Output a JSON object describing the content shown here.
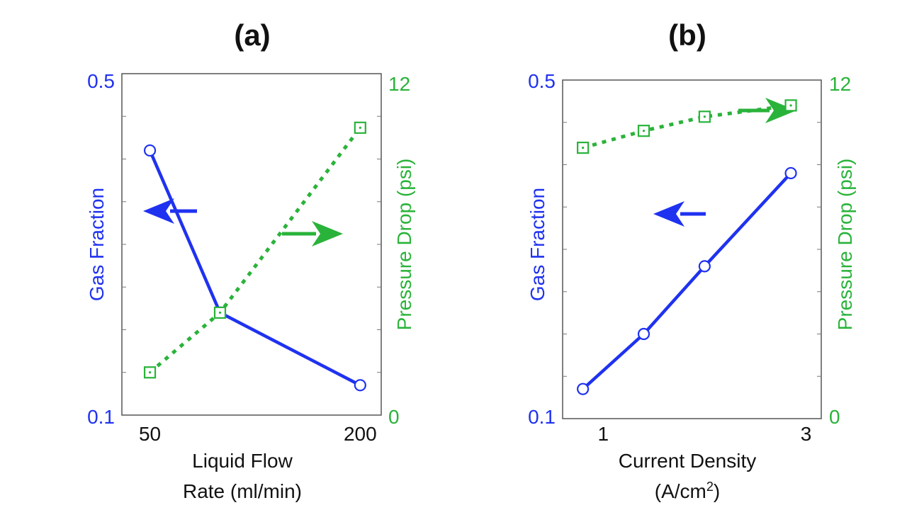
{
  "colors": {
    "left_axis": "#1f32f0",
    "right_axis": "#2ab33a",
    "frame": "#555555",
    "text": "#111111"
  },
  "chart_data": [
    {
      "id": "a",
      "type": "line",
      "title": "(a)",
      "xlabel_lines": [
        "Liquid Flow",
        "Rate (ml/min)"
      ],
      "ylabel_left": "Gas Fraction",
      "ylabel_right": "Pressure Drop (psi)",
      "xlim": [
        30,
        215
      ],
      "x_ticks": [
        50,
        200
      ],
      "x_tick_labels": [
        "50",
        "200"
      ],
      "ylim_left": [
        0.1,
        0.5
      ],
      "y_left_tick_labels": [
        "0.1",
        "0.5"
      ],
      "ylim_right": [
        0,
        12
      ],
      "y_right_tick_labels": [
        "0",
        "12"
      ],
      "grid": false,
      "series": [
        {
          "axis": "left",
          "marker": "circle",
          "line_style": "solid",
          "color": "#1f32f0",
          "x": [
            50,
            100,
            200
          ],
          "y": [
            0.41,
            0.22,
            0.135
          ]
        },
        {
          "axis": "right",
          "marker": "square",
          "line_style": "dotted",
          "color": "#2ab33a",
          "x": [
            50,
            100,
            200
          ],
          "y": [
            1.5,
            3.6,
            10.1
          ]
        }
      ],
      "annotations": [
        {
          "type": "arrow",
          "direction": "left",
          "color": "#1f32f0",
          "target_axis": "left"
        },
        {
          "type": "arrow",
          "direction": "right",
          "color": "#2ab33a",
          "target_axis": "right"
        }
      ]
    },
    {
      "id": "b",
      "type": "line",
      "title": "(b)",
      "xlabel_lines": [
        "Current Density",
        "(A/cm2)"
      ],
      "ylabel_left": "Gas Fraction",
      "ylabel_right": "Pressure Drop (psi)",
      "xlim": [
        0.6,
        3.15
      ],
      "x_ticks": [
        1,
        3
      ],
      "x_tick_labels": [
        "1",
        "3"
      ],
      "ylim_left": [
        0.1,
        0.5
      ],
      "y_left_tick_labels": [
        "0.1",
        "0.5"
      ],
      "ylim_right": [
        0,
        12
      ],
      "y_right_tick_labels": [
        "0",
        "12"
      ],
      "grid": false,
      "series": [
        {
          "axis": "left",
          "marker": "circle",
          "line_style": "solid",
          "color": "#1f32f0",
          "x": [
            0.8,
            1.4,
            2.0,
            2.85
          ],
          "y": [
            0.135,
            0.2,
            0.28,
            0.39
          ]
        },
        {
          "axis": "right",
          "marker": "square",
          "line_style": "dotted",
          "color": "#2ab33a",
          "x": [
            0.8,
            1.4,
            2.0,
            2.85
          ],
          "y": [
            9.6,
            10.2,
            10.7,
            11.1
          ]
        }
      ],
      "annotations": [
        {
          "type": "arrow",
          "direction": "left",
          "color": "#1f32f0",
          "target_axis": "left"
        },
        {
          "type": "arrow",
          "direction": "right",
          "color": "#2ab33a",
          "target_axis": "right"
        }
      ]
    }
  ]
}
